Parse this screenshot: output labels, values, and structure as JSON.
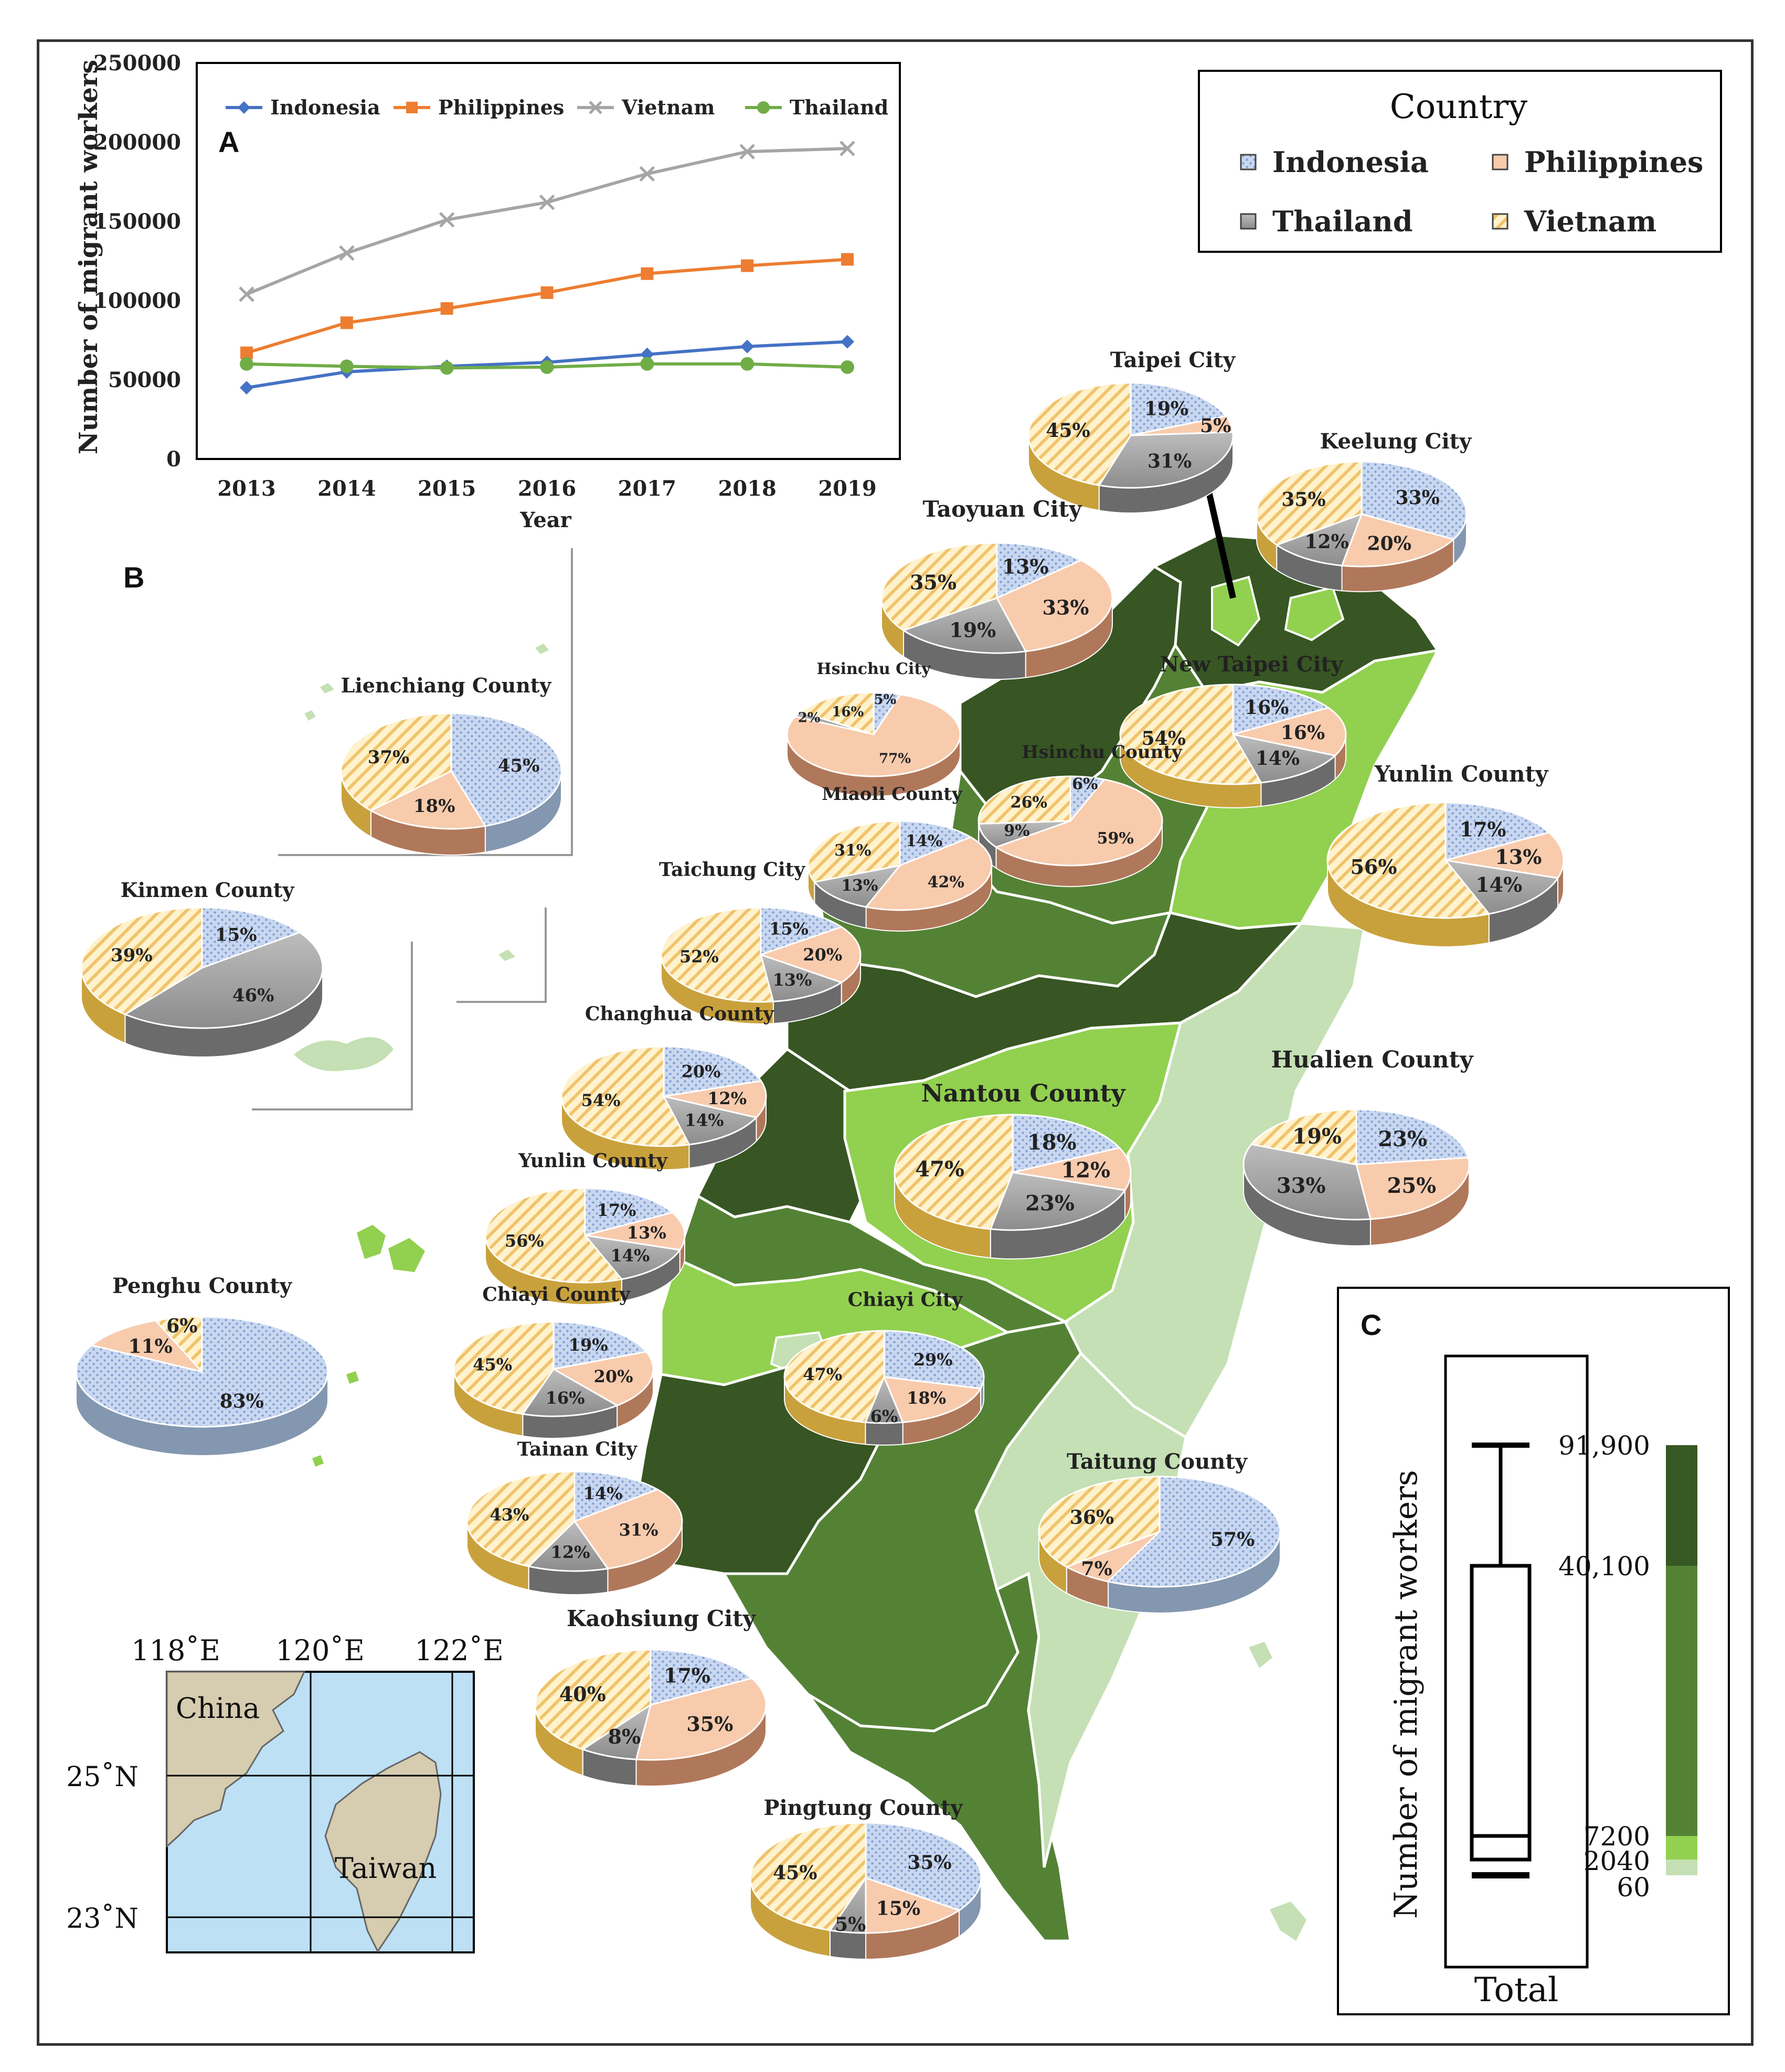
{
  "chart_data": [
    {
      "panel": "A",
      "type": "line",
      "ylabel": "Number of migrant workers",
      "xlabel": "Year",
      "x": [
        "2013",
        "2014",
        "2015",
        "2016",
        "2017",
        "2018",
        "2019"
      ],
      "ylim": [
        0,
        250000
      ],
      "yticks": [
        0,
        50000,
        100000,
        150000,
        200000,
        250000
      ],
      "legend": "top-inside",
      "series": [
        {
          "name": "Indonesia",
          "color": "#4472c4",
          "marker": "diamond",
          "values": [
            45000,
            55000,
            58500,
            61000,
            66000,
            71000,
            74000
          ]
        },
        {
          "name": "Philippines",
          "color": "#ed7d31",
          "marker": "square",
          "values": [
            67000,
            86000,
            95000,
            105000,
            117000,
            122000,
            126000
          ]
        },
        {
          "name": "Vietnam",
          "color": "#a5a5a5",
          "marker": "x",
          "values": [
            104000,
            130000,
            151000,
            162000,
            180000,
            194000,
            196000
          ]
        },
        {
          "name": "Thailand",
          "color": "#70ad47",
          "marker": "circle",
          "values": [
            60000,
            58500,
            57500,
            58000,
            60000,
            60000,
            58000
          ]
        }
      ]
    },
    {
      "panel": "B",
      "type": "pie",
      "note": "Share of migrant workers by country per city/county",
      "legend_title": "Country",
      "legend": [
        "Indonesia",
        "Philippines",
        "Thailand",
        "Vietnam"
      ],
      "pies": [
        {
          "name": "Taipei City",
          "slices": [
            {
              "c": "Indonesia",
              "v": 19
            },
            {
              "c": "Philippines",
              "v": 5
            },
            {
              "c": "Thailand",
              "v": 31
            },
            {
              "c": "Vietnam",
              "v": 45
            }
          ]
        },
        {
          "name": "Keelung City",
          "slices": [
            {
              "c": "Indonesia",
              "v": 33
            },
            {
              "c": "Philippines",
              "v": 20
            },
            {
              "c": "Thailand",
              "v": 12
            },
            {
              "c": "Vietnam",
              "v": 35
            }
          ]
        },
        {
          "name": "Taoyuan City",
          "slices": [
            {
              "c": "Indonesia",
              "v": 13
            },
            {
              "c": "Philippines",
              "v": 33
            },
            {
              "c": "Thailand",
              "v": 19
            },
            {
              "c": "Vietnam",
              "v": 35
            }
          ]
        },
        {
          "name": "New Taipei City",
          "slices": [
            {
              "c": "Indonesia",
              "v": 16
            },
            {
              "c": "Philippines",
              "v": 16
            },
            {
              "c": "Thailand",
              "v": 14
            },
            {
              "c": "Vietnam",
              "v": 54
            }
          ]
        },
        {
          "name": "Hsinchu City",
          "slices": [
            {
              "c": "Indonesia",
              "v": 5
            },
            {
              "c": "Philippines",
              "v": 77
            },
            {
              "c": "Thailand",
              "v": 2
            },
            {
              "c": "Vietnam",
              "v": 16
            }
          ]
        },
        {
          "name": "Hsinchu County",
          "slices": [
            {
              "c": "Indonesia",
              "v": 6
            },
            {
              "c": "Philippines",
              "v": 59
            },
            {
              "c": "Thailand",
              "v": 9
            },
            {
              "c": "Vietnam",
              "v": 26
            }
          ]
        },
        {
          "name": "Yunlin County",
          "slices": [
            {
              "c": "Indonesia",
              "v": 17
            },
            {
              "c": "Philippines",
              "v": 13
            },
            {
              "c": "Thailand",
              "v": 14
            },
            {
              "c": "Vietnam",
              "v": 56
            }
          ]
        },
        {
          "name": "Lienchiang County",
          "slices": [
            {
              "c": "Indonesia",
              "v": 45
            },
            {
              "c": "Philippines",
              "v": 18
            },
            {
              "c": "Vietnam",
              "v": 37
            }
          ]
        },
        {
          "name": "Miaoli County",
          "slices": [
            {
              "c": "Indonesia",
              "v": 14
            },
            {
              "c": "Philippines",
              "v": 42
            },
            {
              "c": "Thailand",
              "v": 13
            },
            {
              "c": "Vietnam",
              "v": 31
            }
          ]
        },
        {
          "name": "Kinmen County",
          "slices": [
            {
              "c": "Indonesia",
              "v": 15
            },
            {
              "c": "Thailand",
              "v": 46
            },
            {
              "c": "Vietnam",
              "v": 39
            }
          ]
        },
        {
          "name": "Taichung City",
          "slices": [
            {
              "c": "Indonesia",
              "v": 15
            },
            {
              "c": "Philippines",
              "v": 20
            },
            {
              "c": "Thailand",
              "v": 13
            },
            {
              "c": "Vietnam",
              "v": 52
            }
          ]
        },
        {
          "name": "Changhua County",
          "slices": [
            {
              "c": "Indonesia",
              "v": 20
            },
            {
              "c": "Philippines",
              "v": 12
            },
            {
              "c": "Thailand",
              "v": 14
            },
            {
              "c": "Vietnam",
              "v": 54
            }
          ]
        },
        {
          "name": "Nantou County",
          "slices": [
            {
              "c": "Indonesia",
              "v": 18
            },
            {
              "c": "Philippines",
              "v": 12
            },
            {
              "c": "Thailand",
              "v": 23
            },
            {
              "c": "Vietnam",
              "v": 47
            }
          ]
        },
        {
          "name": "Hualien County",
          "slices": [
            {
              "c": "Indonesia",
              "v": 23
            },
            {
              "c": "Philippines",
              "v": 25
            },
            {
              "c": "Thailand",
              "v": 33
            },
            {
              "c": "Vietnam",
              "v": 19
            }
          ]
        },
        {
          "name": "Yunlin County",
          "slices": [
            {
              "c": "Indonesia",
              "v": 17
            },
            {
              "c": "Philippines",
              "v": 13
            },
            {
              "c": "Thailand",
              "v": 14
            },
            {
              "c": "Vietnam",
              "v": 56
            }
          ]
        },
        {
          "name": "Penghu County",
          "slices": [
            {
              "c": "Indonesia",
              "v": 83
            },
            {
              "c": "Philippines",
              "v": 11
            },
            {
              "c": "Vietnam",
              "v": 6
            }
          ]
        },
        {
          "name": "Chiayi County",
          "slices": [
            {
              "c": "Indonesia",
              "v": 19
            },
            {
              "c": "Philippines",
              "v": 20
            },
            {
              "c": "Thailand",
              "v": 16
            },
            {
              "c": "Vietnam",
              "v": 45
            }
          ]
        },
        {
          "name": "Chiayi City",
          "slices": [
            {
              "c": "Indonesia",
              "v": 29
            },
            {
              "c": "Philippines",
              "v": 18
            },
            {
              "c": "Thailand",
              "v": 6
            },
            {
              "c": "Vietnam",
              "v": 47
            }
          ]
        },
        {
          "name": "Tainan City",
          "slices": [
            {
              "c": "Indonesia",
              "v": 14
            },
            {
              "c": "Philippines",
              "v": 31
            },
            {
              "c": "Thailand",
              "v": 12
            },
            {
              "c": "Vietnam",
              "v": 43
            }
          ]
        },
        {
          "name": "Taitung County",
          "slices": [
            {
              "c": "Indonesia",
              "v": 57
            },
            {
              "c": "Philippines",
              "v": 7
            },
            {
              "c": "Vietnam",
              "v": 36
            }
          ]
        },
        {
          "name": "Kaohsiung City",
          "slices": [
            {
              "c": "Indonesia",
              "v": 17
            },
            {
              "c": "Philippines",
              "v": 35
            },
            {
              "c": "Thailand",
              "v": 8
            },
            {
              "c": "Vietnam",
              "v": 40
            }
          ]
        },
        {
          "name": "Pingtung County",
          "slices": [
            {
              "c": "Indonesia",
              "v": 35
            },
            {
              "c": "Philippines",
              "v": 15
            },
            {
              "c": "Thailand",
              "v": 5
            },
            {
              "c": "Vietnam",
              "v": 45
            }
          ]
        }
      ]
    },
    {
      "panel": "C",
      "type": "box",
      "ylabel": "Number of migrant workers",
      "xlabel": "Total",
      "stats": {
        "max": 91900,
        "q3": 40100,
        "median": 7200,
        "q1": 2040,
        "min": 60
      },
      "scale_labels": [
        "91,900",
        "40,100",
        "7200",
        "2040",
        "60"
      ],
      "scale_colors": [
        "#365823",
        "#548235",
        "#92d050",
        "#c5e0b4"
      ]
    }
  ],
  "panel_labels": {
    "a": "A",
    "b": "B",
    "c": "C"
  },
  "inset": {
    "lon_labels": [
      "118˚E",
      "120˚E",
      "122˚E"
    ],
    "lat_labels": [
      "25˚N",
      "23˚N"
    ],
    "place_labels": [
      "China",
      "Taiwan"
    ]
  },
  "colors": {
    "indonesia": "#b4c7e7",
    "philippines": "#f4b183",
    "thailand": "#a5a5a5",
    "vietnam": "#ffe699",
    "map_dark": "#375623",
    "map_mid": "#548235",
    "map_light": "#92d050",
    "map_pale": "#c5e0b4"
  }
}
